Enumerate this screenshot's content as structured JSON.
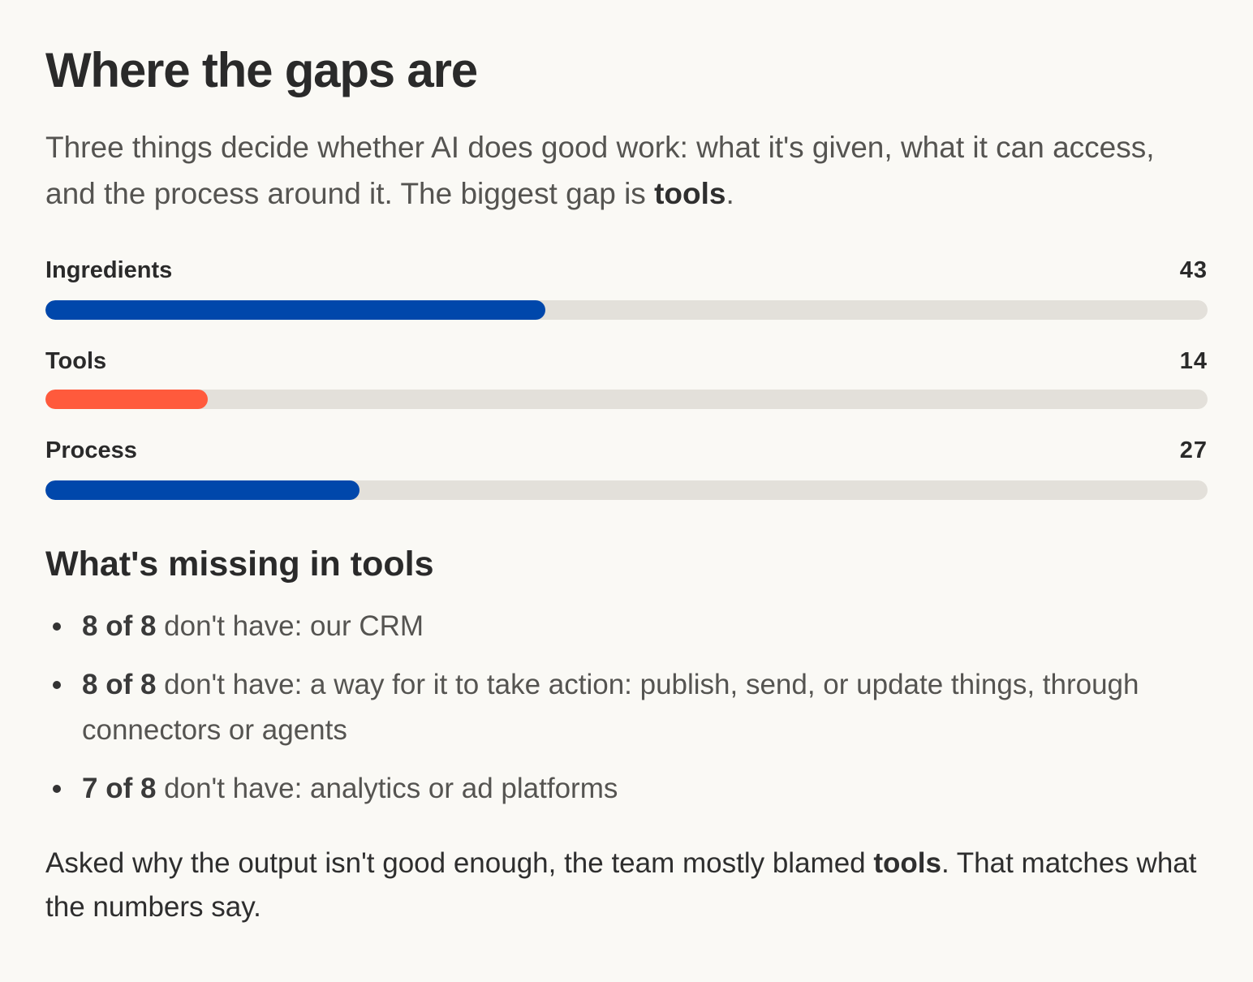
{
  "title": "Where the gaps are",
  "intro": {
    "text_before": "Three things decide whether AI does good work: what it's given, what it can access, and the process around it. The biggest gap is ",
    "emphasis": "tools",
    "text_after": "."
  },
  "metrics": [
    {
      "label": "Ingredients",
      "value": "43",
      "fraction": 0.43,
      "color": "#0047ab"
    },
    {
      "label": "Tools",
      "value": "14",
      "fraction": 0.14,
      "color": "#ff5a3c"
    },
    {
      "label": "Process",
      "value": "27",
      "fraction": 0.27,
      "color": "#0047ab"
    }
  ],
  "colors": {
    "track": "#e3e0da",
    "accent_blue": "#0047ab",
    "accent_orange": "#ff5a3c"
  },
  "missing": {
    "heading": "What's missing in tools",
    "items": [
      {
        "count": "8 of 8",
        "text": " don't have: our CRM"
      },
      {
        "count": "8 of 8",
        "text": " don't have: a way for it to take action: publish, send, or update things, through connectors or agents"
      },
      {
        "count": "7 of 8",
        "text": " don't have: analytics or ad platforms"
      }
    ]
  },
  "closing": {
    "text_before": "Asked why the output isn't good enough, the team mostly blamed ",
    "emphasis": "tools",
    "text_after": ". That matches what the numbers say."
  }
}
